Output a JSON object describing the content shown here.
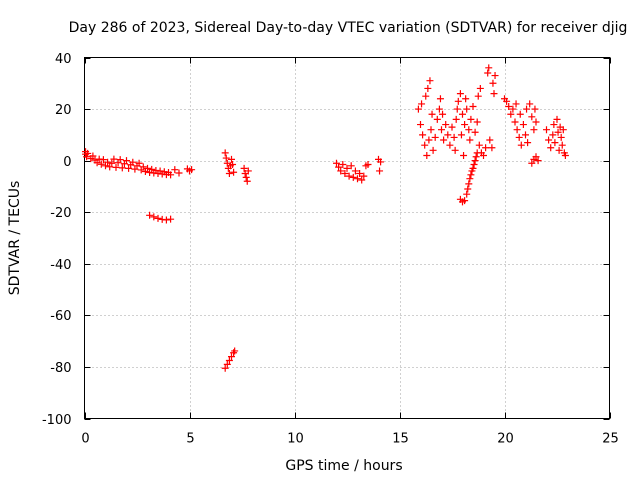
{
  "chart_data": {
    "type": "scatter",
    "title": "Day 286 of 2023, Sidereal Day-to-day VTEC variation (SDTVAR) for receiver djig",
    "xlabel": "GPS time / hours",
    "ylabel": "SDTVAR / TECUs",
    "xlim": [
      0,
      25
    ],
    "ylim": [
      -100,
      40
    ],
    "xticks": [
      0,
      5,
      10,
      15,
      20,
      25
    ],
    "yticks": [
      -100,
      -80,
      -60,
      -40,
      -20,
      0,
      20,
      40
    ],
    "grid": true,
    "marker": "plus",
    "color": "#ff0000",
    "series": [
      {
        "values": [
          [
            0.05,
            3.5
          ],
          [
            0.05,
            2.5
          ],
          [
            0.1,
            1.5
          ],
          [
            0.15,
            2.8
          ],
          [
            0.3,
            0.8
          ],
          [
            0.4,
            1.8
          ],
          [
            0.5,
            0.2
          ],
          [
            0.6,
            -0.8
          ],
          [
            0.7,
            0.6
          ],
          [
            0.8,
            -1.4
          ],
          [
            0.9,
            0.4
          ],
          [
            1.0,
            -2.0
          ],
          [
            1.1,
            -0.6
          ],
          [
            1.2,
            -2.4
          ],
          [
            1.3,
            -1.0
          ],
          [
            1.4,
            0.6
          ],
          [
            1.5,
            -2.6
          ],
          [
            1.6,
            -0.8
          ],
          [
            1.7,
            0.4
          ],
          [
            1.8,
            -2.8
          ],
          [
            1.9,
            -1.2
          ],
          [
            2.0,
            0.0
          ],
          [
            2.1,
            -3.0
          ],
          [
            2.2,
            -1.6
          ],
          [
            2.3,
            -0.6
          ],
          [
            2.4,
            -3.3
          ],
          [
            2.5,
            -2.0
          ],
          [
            2.6,
            -1.0
          ],
          [
            2.7,
            -3.6
          ],
          [
            2.8,
            -2.4
          ],
          [
            2.9,
            -4.2
          ],
          [
            3.0,
            -3.0
          ],
          [
            3.1,
            -4.6
          ],
          [
            3.2,
            -3.4
          ],
          [
            3.3,
            -4.8
          ],
          [
            3.4,
            -3.8
          ],
          [
            3.5,
            -5.0
          ],
          [
            3.6,
            -4.0
          ],
          [
            3.7,
            -5.2
          ],
          [
            3.8,
            -4.3
          ],
          [
            3.9,
            -5.4
          ],
          [
            4.0,
            -4.6
          ],
          [
            4.1,
            -5.5
          ],
          [
            4.3,
            -3.5
          ],
          [
            4.5,
            -4.8
          ],
          [
            4.9,
            -3.2
          ],
          [
            5.0,
            -4.0
          ],
          [
            5.1,
            -3.5
          ]
        ]
      },
      {
        "values": [
          [
            3.1,
            -21.2
          ],
          [
            3.3,
            -21.8
          ],
          [
            3.5,
            -22.4
          ],
          [
            3.7,
            -22.8
          ],
          [
            3.9,
            -23.0
          ],
          [
            4.1,
            -22.7
          ]
        ]
      },
      {
        "values": [
          [
            6.7,
            3.0
          ],
          [
            6.75,
            1.0
          ],
          [
            6.8,
            -1.0
          ],
          [
            6.85,
            -3.0
          ],
          [
            6.9,
            -5.0
          ],
          [
            6.95,
            -2.0
          ],
          [
            7.0,
            0.5
          ],
          [
            7.05,
            -1.5
          ],
          [
            7.1,
            -4.5
          ],
          [
            7.6,
            -3.0
          ],
          [
            7.65,
            -5.0
          ],
          [
            7.7,
            -6.5
          ],
          [
            7.75,
            -8.0
          ],
          [
            7.8,
            -4.0
          ]
        ]
      },
      {
        "values": [
          [
            6.7,
            -80.5
          ],
          [
            6.8,
            -79.0
          ],
          [
            6.9,
            -77.5
          ],
          [
            7.0,
            -76.0
          ],
          [
            7.1,
            -74.5
          ],
          [
            7.15,
            -73.8
          ]
        ]
      },
      {
        "values": [
          [
            12.0,
            -1.0
          ],
          [
            12.1,
            -2.5
          ],
          [
            12.2,
            -4.0
          ],
          [
            12.3,
            -1.5
          ],
          [
            12.4,
            -5.0
          ],
          [
            12.5,
            -3.0
          ],
          [
            12.6,
            -6.0
          ],
          [
            12.7,
            -2.0
          ],
          [
            12.8,
            -6.5
          ],
          [
            12.9,
            -4.0
          ],
          [
            13.0,
            -7.0
          ],
          [
            13.1,
            -5.0
          ],
          [
            13.2,
            -7.5
          ],
          [
            13.3,
            -6.0
          ],
          [
            13.4,
            -2.0
          ],
          [
            13.5,
            -1.5
          ],
          [
            14.0,
            0.5
          ],
          [
            14.1,
            -0.5
          ],
          [
            14.05,
            -4.0
          ]
        ]
      },
      {
        "values": [
          [
            15.9,
            20.0
          ],
          [
            16.0,
            14.0
          ],
          [
            16.05,
            22.0
          ],
          [
            16.1,
            10.0
          ],
          [
            16.2,
            6.0
          ],
          [
            16.25,
            25.0
          ],
          [
            16.3,
            2.0
          ],
          [
            16.35,
            28.0
          ],
          [
            16.4,
            8.0
          ],
          [
            16.45,
            31.0
          ],
          [
            16.5,
            12.0
          ],
          [
            16.55,
            18.0
          ],
          [
            16.6,
            4.0
          ],
          [
            16.7,
            9.0
          ],
          [
            16.8,
            16.0
          ],
          [
            16.9,
            20.0
          ],
          [
            16.95,
            24.0
          ],
          [
            17.0,
            12.0
          ],
          [
            17.05,
            18.0
          ],
          [
            17.1,
            8.0
          ],
          [
            17.2,
            14.0
          ],
          [
            17.3,
            10.0
          ],
          [
            17.4,
            6.0
          ],
          [
            17.5,
            13.0
          ],
          [
            17.6,
            9.0
          ],
          [
            17.65,
            4.0
          ],
          [
            17.7,
            16.0
          ],
          [
            17.75,
            20.0
          ],
          [
            17.8,
            23.0
          ],
          [
            17.9,
            26.0
          ],
          [
            17.95,
            10.0
          ],
          [
            18.0,
            18.0
          ],
          [
            18.05,
            2.0
          ],
          [
            18.1,
            14.0
          ],
          [
            18.15,
            24.0
          ],
          [
            18.2,
            20.0
          ],
          [
            18.3,
            12.0
          ],
          [
            18.35,
            8.0
          ],
          [
            18.4,
            16.0
          ],
          [
            18.5,
            21.0
          ],
          [
            18.6,
            11.0
          ],
          [
            18.7,
            15.0
          ],
          [
            18.75,
            25.0
          ],
          [
            18.8,
            6.0
          ],
          [
            18.85,
            28.0
          ],
          [
            18.9,
            3.0
          ],
          [
            19.0,
            2.0
          ],
          [
            19.1,
            5.0
          ],
          [
            19.2,
            34.0
          ],
          [
            19.25,
            36.0
          ],
          [
            19.3,
            8.0
          ],
          [
            19.4,
            5.0
          ],
          [
            19.45,
            30.0
          ],
          [
            19.5,
            26.0
          ],
          [
            19.55,
            33.0
          ]
        ]
      },
      {
        "values": [
          [
            17.9,
            -15.0
          ],
          [
            18.0,
            -16.0
          ],
          [
            18.1,
            -15.5
          ],
          [
            18.2,
            -13.0
          ],
          [
            18.25,
            -11.0
          ],
          [
            18.3,
            -9.0
          ],
          [
            18.35,
            -7.0
          ],
          [
            18.4,
            -5.5
          ],
          [
            18.45,
            -4.0
          ],
          [
            18.5,
            -3.0
          ],
          [
            18.55,
            -1.5
          ],
          [
            18.6,
            0.0
          ],
          [
            18.65,
            1.5
          ],
          [
            18.7,
            3.0
          ]
        ]
      },
      {
        "values": [
          [
            20.0,
            24.0
          ],
          [
            20.1,
            23.0
          ],
          [
            20.2,
            21.0
          ],
          [
            20.3,
            18.0
          ],
          [
            20.4,
            20.0
          ],
          [
            20.5,
            15.0
          ],
          [
            20.55,
            22.0
          ],
          [
            20.6,
            12.0
          ],
          [
            20.7,
            9.0
          ],
          [
            20.75,
            18.0
          ],
          [
            20.8,
            6.0
          ],
          [
            20.9,
            14.0
          ],
          [
            21.0,
            10.0
          ],
          [
            21.05,
            20.0
          ],
          [
            21.1,
            7.0
          ],
          [
            21.2,
            22.0
          ],
          [
            21.3,
            17.0
          ],
          [
            21.4,
            12.0
          ],
          [
            21.45,
            20.0
          ],
          [
            21.5,
            15.0
          ],
          [
            21.3,
            -1.0
          ],
          [
            21.4,
            0.5
          ],
          [
            21.5,
            1.5
          ],
          [
            21.6,
            0.0
          ]
        ]
      },
      {
        "values": [
          [
            22.0,
            12.0
          ],
          [
            22.1,
            8.0
          ],
          [
            22.2,
            5.0
          ],
          [
            22.3,
            10.0
          ],
          [
            22.35,
            14.0
          ],
          [
            22.4,
            7.0
          ],
          [
            22.5,
            16.0
          ],
          [
            22.55,
            11.0
          ],
          [
            22.6,
            4.0
          ],
          [
            22.65,
            13.0
          ],
          [
            22.7,
            9.0
          ],
          [
            22.75,
            6.0
          ],
          [
            22.8,
            12.0
          ],
          [
            22.85,
            3.0
          ],
          [
            22.9,
            2.0
          ]
        ]
      }
    ]
  }
}
